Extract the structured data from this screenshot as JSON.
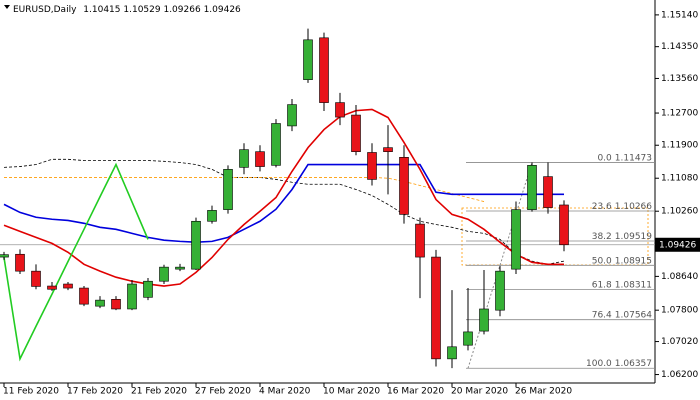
{
  "chart_data": {
    "type": "candlestick",
    "symbol": "EURUSD,Daily",
    "categories": [
      "11 Feb 2020",
      null,
      null,
      null,
      "17 Feb 2020",
      null,
      null,
      null,
      "21 Feb 2020",
      null,
      null,
      null,
      "27 Feb 2020",
      null,
      null,
      null,
      "4 Mar 2020",
      null,
      null,
      null,
      "10 Mar 2020",
      null,
      null,
      null,
      "16 Mar 2020",
      null,
      null,
      null,
      "20 Mar 2020",
      null,
      null,
      null,
      "26 Mar 2020",
      null,
      null,
      null
    ],
    "open": [
      1.0912,
      1.0919,
      1.0877,
      1.084,
      1.0845,
      1.0835,
      1.079,
      1.0807,
      1.0783,
      1.0812,
      1.0852,
      1.0882,
      1.0882,
      1.1001,
      1.103,
      1.1135,
      1.1174,
      1.114,
      1.1238,
      1.1353,
      1.1457,
      1.1296,
      1.1265,
      1.1172,
      1.1184,
      1.116,
      1.0994,
      1.0912,
      1.0659,
      1.0693,
      1.0728,
      1.078,
      1.0882,
      1.103,
      1.1112,
      1.10415
    ],
    "high": [
      1.0925,
      1.0931,
      1.0894,
      1.085,
      1.085,
      1.084,
      1.0815,
      1.0815,
      1.0855,
      1.086,
      1.0893,
      1.0895,
      1.101,
      1.104,
      1.114,
      1.1195,
      1.119,
      1.1255,
      1.1305,
      1.148,
      1.147,
      1.132,
      1.129,
      1.1195,
      1.124,
      1.119,
      1.101,
      1.093,
      1.083,
      1.0835,
      1.088,
      1.089,
      1.105,
      1.1147,
      1.1147,
      1.10529
    ],
    "low": [
      1.0905,
      1.087,
      1.0832,
      1.0828,
      1.083,
      1.079,
      1.0785,
      1.078,
      1.078,
      1.0805,
      1.0845,
      1.0877,
      1.088,
      1.0995,
      1.102,
      1.1118,
      1.1125,
      1.1135,
      1.1225,
      1.1345,
      1.1275,
      1.124,
      1.1165,
      1.109,
      1.1068,
      1.0995,
      1.081,
      1.064,
      1.0636,
      1.068,
      1.072,
      1.0765,
      1.087,
      1.1025,
      1.102,
      1.09266
    ],
    "close": [
      1.0918,
      1.0877,
      1.0839,
      1.0832,
      1.0835,
      1.0795,
      1.0805,
      1.0783,
      1.0845,
      1.0852,
      1.0887,
      1.0887,
      1.1001,
      1.1028,
      1.113,
      1.1179,
      1.1137,
      1.1244,
      1.1291,
      1.1452,
      1.1296,
      1.126,
      1.1174,
      1.1105,
      1.1174,
      1.1018,
      1.0912,
      1.0659,
      1.0689,
      1.0726,
      1.0783,
      1.0877,
      1.103,
      1.114,
      1.1035,
      1.09426
    ],
    "up_color": "#35b035",
    "down_color": "#e8141a",
    "series": [
      {
        "color": "#000000",
        "dashed": true,
        "values": [
          1.1135,
          1.1137,
          1.1142,
          1.1155,
          1.1155,
          1.1152,
          1.1152,
          1.1152,
          1.1152,
          1.1152,
          1.115,
          1.1147,
          1.1142,
          1.113,
          1.111,
          1.111,
          1.111,
          1.1105,
          1.1098,
          1.1093,
          1.1093,
          1.1093,
          1.108,
          1.1065,
          1.1043,
          1.1018,
          1.1001,
          1.0993,
          1.0986,
          1.0976,
          1.0971,
          1.0956,
          1.0919,
          1.0902,
          1.0894,
          1.0902
        ]
      },
      {
        "color": "#ff9900",
        "dashed": true,
        "values": [
          1.111,
          1.111,
          1.111,
          1.111,
          1.111,
          1.111,
          1.111,
          1.111,
          1.111,
          1.111,
          1.111,
          1.111,
          1.111,
          1.111,
          1.111,
          1.111,
          1.111,
          1.111,
          1.111,
          1.111,
          1.111,
          1.111,
          1.111,
          1.111,
          1.1108,
          1.11,
          1.109,
          1.108,
          1.107,
          1.106,
          1.105,
          null,
          null,
          null,
          null,
          null
        ]
      },
      {
        "color": "#0000dd",
        "dashed": false,
        "values": [
          1.1043,
          1.1023,
          1.1011,
          1.1006,
          1.1003,
          1.0996,
          1.0986,
          1.0981,
          1.0971,
          1.0961,
          1.0954,
          1.0951,
          1.0949,
          1.0951,
          1.0961,
          1.0981,
          1.1001,
          1.1031,
          1.108,
          1.1142,
          1.1142,
          1.1142,
          1.1142,
          1.1142,
          1.1142,
          1.1142,
          1.1142,
          1.1073,
          1.1068,
          1.1068,
          1.1068,
          1.1068,
          1.1068,
          1.1068,
          1.1068,
          1.1068
        ]
      },
      {
        "color": "#e00000",
        "dashed": false,
        "values": [
          1.0991,
          1.0976,
          1.0961,
          1.0946,
          1.0924,
          1.0894,
          1.0877,
          1.0862,
          1.0852,
          1.0845,
          1.084,
          1.0845,
          1.0874,
          1.0911,
          1.0956,
          1.0993,
          1.1026,
          1.106,
          1.1125,
          1.1184,
          1.1229,
          1.1261,
          1.1276,
          1.1279,
          1.1259,
          1.1197,
          1.113,
          1.1055,
          1.1018,
          1.1006,
          1.0981,
          1.0949,
          1.0919,
          1.0899,
          1.0894,
          1.0894
        ]
      },
      {
        "color": "#22cc22",
        "dashed": false,
        "values": [
          1.0911,
          1.0659,
          1.074,
          1.082,
          1.0901,
          1.0981,
          1.1062,
          1.1142,
          1.1049,
          1.0956,
          null,
          null,
          null,
          null,
          null,
          null,
          null,
          null,
          null,
          null,
          null,
          null,
          null,
          null,
          null,
          null,
          null,
          null,
          null,
          null,
          null,
          null,
          null,
          null,
          null,
          null
        ]
      }
    ],
    "fibonacci": [
      {
        "level": "0.0",
        "price": 1.11473
      },
      {
        "level": "23.6",
        "price": 1.10266
      },
      {
        "level": "38.2",
        "price": 1.09519
      },
      {
        "level": "50.0",
        "price": 1.08915
      },
      {
        "level": "61.8",
        "price": 1.08311
      },
      {
        "level": "76.4",
        "price": 1.07564
      },
      {
        "level": "100.0",
        "price": 1.06357
      }
    ],
    "ylim": [
      1.0599,
      1.1551
    ],
    "yticks": [
      {
        "value": 1.1514,
        "label": "1.15140"
      },
      {
        "value": 1.1435,
        "label": "1.14350"
      },
      {
        "value": 1.1356,
        "label": "1.13560"
      },
      {
        "value": 1.127,
        "label": "1.12700"
      },
      {
        "value": 1.119,
        "label": "1.11900"
      },
      {
        "value": 1.1108,
        "label": "1.11080"
      },
      {
        "value": 1.1026,
        "label": "1.10260"
      },
      {
        "value": 1.0864,
        "label": "1.08640"
      },
      {
        "value": 1.078,
        "label": "1.07800"
      },
      {
        "value": 1.0702,
        "label": "1.07020"
      },
      {
        "value": 1.062,
        "label": "1.06200"
      }
    ],
    "grid": false
  }
}
